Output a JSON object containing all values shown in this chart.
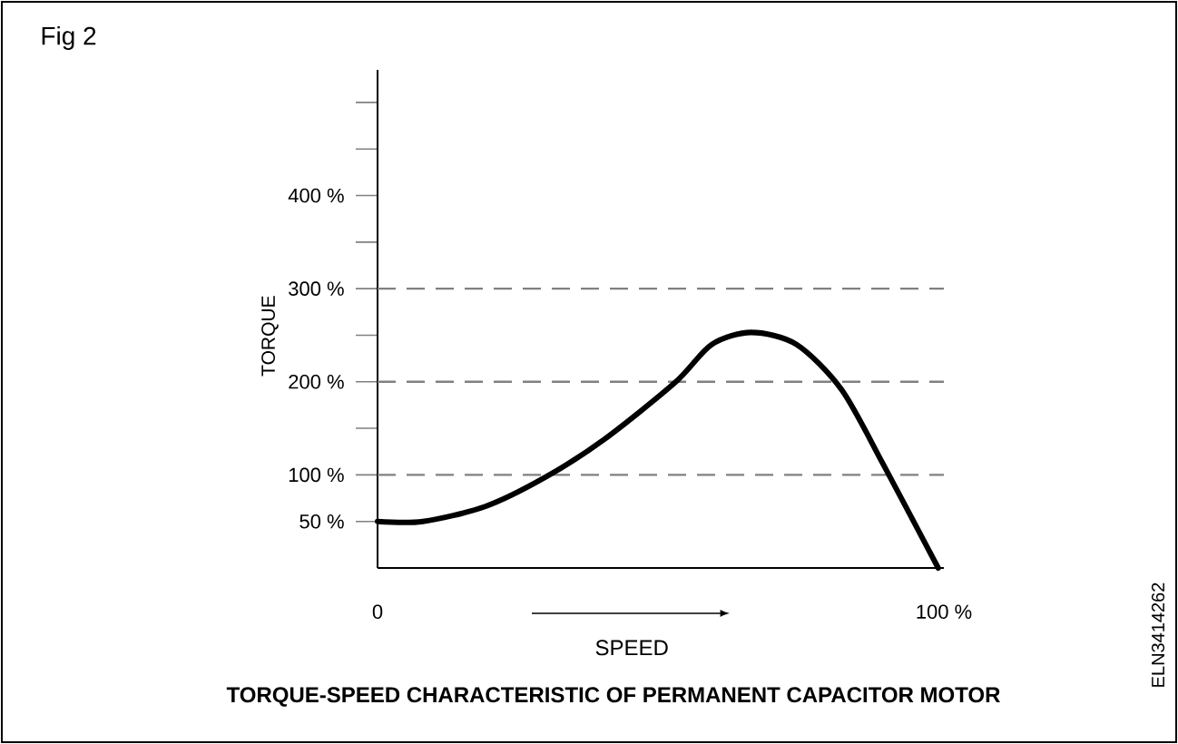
{
  "chart_data": {
    "type": "line",
    "title": "TORQUE-SPEED CHARACTERISTIC OF PERMANENT CAPACITOR MOTOR",
    "xlabel": "SPEED",
    "ylabel": "TORQUE",
    "annotations": [
      "Fig 2",
      "ELN3414262"
    ],
    "x": [
      0,
      8,
      19,
      29.5,
      40,
      52.5,
      59,
      66,
      74,
      82,
      89.5,
      99
    ],
    "series": [
      {
        "color": "#000000",
        "values": [
          50,
          50,
          66,
          97,
          138,
          199,
          240,
          253,
          240,
          191,
          109,
          0
        ]
      }
    ],
    "line_style": "solid",
    "xlim": [
      0,
      100
    ],
    "ylim": [
      0,
      535
    ],
    "xticks": [
      {
        "value": 0,
        "label": "0"
      },
      {
        "value": 100,
        "label": "100 %"
      }
    ],
    "yticks": [
      {
        "value": 50,
        "label": "50 %"
      },
      {
        "value": 100,
        "label": "100 %"
      },
      {
        "value": 150,
        "label": null
      },
      {
        "value": 200,
        "label": "200 %"
      },
      {
        "value": 250,
        "label": null
      },
      {
        "value": 300,
        "label": "300 %"
      },
      {
        "value": 350,
        "label": null
      },
      {
        "value": 400,
        "label": "400 %"
      },
      {
        "value": 450,
        "label": null
      },
      {
        "value": 500,
        "label": null
      }
    ],
    "ref_lines": [
      {
        "axis": "y",
        "value": 100,
        "color": "#808080",
        "line_style": "dashed"
      },
      {
        "axis": "y",
        "value": 200,
        "color": "#808080",
        "line_style": "dashed"
      },
      {
        "axis": "y",
        "value": 300,
        "color": "#808080",
        "line_style": "dashed"
      }
    ]
  }
}
